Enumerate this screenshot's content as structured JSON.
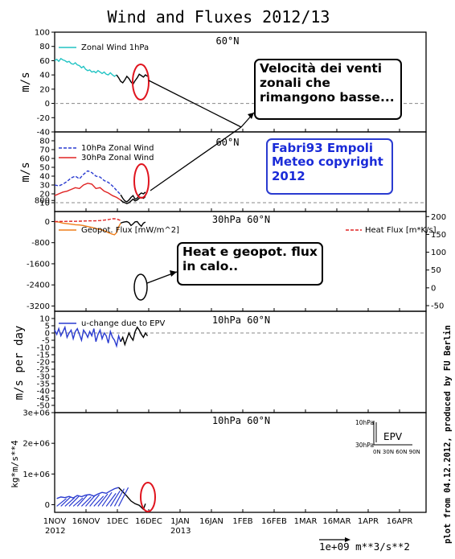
{
  "title": "Wind and Fluxes 2012/13",
  "side_note": "plot from 04.12.2012, produced by FU Berlin",
  "bottom_unit": "1e+09  m**3/s**2",
  "callouts": {
    "zonal": "Velocità dei venti\nzonali che\nrimangono basse...",
    "credit": "Fabri93 Empoli\nMeteo copyright\n2012",
    "flux": "Heat e geopot. flux\nin calo.."
  },
  "x_axis": {
    "labels": [
      "1NOV",
      "16NOV",
      "1DEC",
      "16DEC",
      "1JAN",
      "16JAN",
      "1FEB",
      "16FEB",
      "1MAR",
      "16MAR",
      "1APR",
      "16APR"
    ],
    "years": [
      "2012",
      "2013"
    ]
  },
  "chart_data": [
    {
      "type": "line",
      "title": "60°N",
      "ylabel": "m/s",
      "ylim": [
        -40,
        100
      ],
      "yticks": [
        "100",
        "80",
        "60",
        "40",
        "20",
        "0",
        "-20",
        "-40"
      ],
      "legend": [
        "Zonal Wind 1hPa"
      ],
      "colors": [
        "#22c4c4",
        "#000000"
      ],
      "series": [
        {
          "name": "Zonal Wind 1hPa",
          "x": [
            0,
            1,
            2,
            3,
            4,
            5,
            6,
            7,
            8,
            9,
            10,
            11,
            12,
            13,
            14,
            15,
            16,
            17,
            18,
            19,
            20,
            21,
            22,
            23,
            24,
            25,
            26,
            27,
            28,
            29,
            30
          ],
          "values": [
            60,
            62,
            59,
            63,
            61,
            60,
            58,
            59,
            56,
            55,
            57,
            54,
            53,
            50,
            52,
            48,
            46,
            47,
            44,
            45,
            43,
            46,
            44,
            42,
            44,
            41,
            40,
            43,
            40,
            38,
            40
          ]
        },
        {
          "name": "",
          "x": [
            30,
            31,
            32,
            33,
            34,
            35,
            36,
            37,
            38,
            39,
            40,
            41,
            42,
            43,
            44,
            45
          ],
          "values": [
            40,
            36,
            31,
            29,
            33,
            38,
            35,
            30,
            27,
            32,
            36,
            41,
            39,
            37,
            40,
            38
          ]
        }
      ]
    },
    {
      "type": "line",
      "title": "60°N",
      "ylabel": "m/s",
      "ylim": [
        0,
        90
      ],
      "yticks": [
        "80",
        "70",
        "60",
        "50",
        "40",
        "30",
        "20",
        "10"
      ],
      "legend": [
        "10hPa Zonal Wind",
        "30hPa Zonal Wind"
      ],
      "colors": [
        "#2a3bd0",
        "#e02424",
        "#000000"
      ],
      "series": [
        {
          "name": "10hPa Zonal Wind",
          "x": [
            0,
            2,
            4,
            6,
            8,
            10,
            12,
            14,
            16,
            18,
            20,
            22,
            24,
            26,
            28,
            30,
            32
          ],
          "values": [
            30,
            29,
            31,
            34,
            38,
            40,
            37,
            42,
            46,
            44,
            40,
            39,
            35,
            33,
            29,
            24,
            19
          ]
        },
        {
          "name": "30hPa Zonal Wind",
          "x": [
            0,
            2,
            4,
            6,
            8,
            10,
            12,
            14,
            16,
            18,
            20,
            22,
            24,
            26,
            28,
            30,
            32
          ],
          "values": [
            18,
            20,
            22,
            23,
            25,
            27,
            26,
            30,
            32,
            31,
            26,
            27,
            23,
            21,
            18,
            16,
            13
          ]
        },
        {
          "name": "",
          "x": [
            32,
            33,
            34,
            35,
            36,
            37,
            38,
            39,
            40,
            41,
            42,
            43,
            44
          ],
          "values": [
            19,
            15,
            12,
            11,
            13,
            16,
            18,
            14,
            15,
            19,
            21,
            20,
            22
          ]
        },
        {
          "name": "",
          "x": [
            32,
            33,
            34,
            35,
            36,
            37,
            38,
            39,
            40,
            41,
            42,
            43,
            44
          ],
          "values": [
            13,
            11,
            10,
            9,
            10,
            12,
            14,
            12,
            13,
            15,
            16,
            15,
            17
          ]
        }
      ]
    },
    {
      "type": "line",
      "title": "30hPa 60°N",
      "ylim": [
        -3400,
        380
      ],
      "yticks_left": [
        "-3200",
        "-2400",
        "-1600",
        "-800",
        "0",
        "800"
      ],
      "yticks_right": [
        "200",
        "150",
        "100",
        "50",
        "0",
        "-50"
      ],
      "legend": [
        "Geopot. Flux [mW/m^2]",
        "Heat Flux [m*K/s]"
      ],
      "colors": [
        "#ef7d1a",
        "#e02424",
        "#000000"
      ],
      "series": [
        {
          "name": "Geopot. Flux [mW/m^2]",
          "x": [
            0,
            2,
            4,
            6,
            8,
            10,
            12,
            14,
            16,
            18,
            20,
            22,
            24,
            26,
            28,
            29,
            30,
            31,
            32
          ],
          "values": [
            0,
            -20,
            -60,
            -80,
            -100,
            -120,
            -130,
            -150,
            -190,
            -220,
            -260,
            -300,
            -340,
            -420,
            -480,
            -500,
            -420,
            -200,
            -60
          ]
        },
        {
          "name": "Heat Flux [m*K/s]",
          "x": [
            0,
            2,
            4,
            6,
            8,
            10,
            12,
            14,
            16,
            18,
            20,
            22,
            24,
            26,
            27,
            28,
            29,
            30,
            31,
            32
          ],
          "values": [
            0,
            2,
            5,
            8,
            10,
            9,
            13,
            20,
            27,
            25,
            30,
            40,
            55,
            75,
            90,
            105,
            110,
            95,
            70,
            40
          ]
        },
        {
          "name": "",
          "x": [
            32,
            33,
            34,
            35,
            36,
            37,
            38,
            39,
            40,
            41,
            42,
            43,
            44
          ],
          "values": [
            -60,
            -30,
            -10,
            0,
            -40,
            -150,
            -90,
            -10,
            0,
            -100,
            -180,
            -60,
            -20
          ]
        }
      ]
    },
    {
      "type": "line",
      "title": "10hPa 60°N",
      "ylabel": "m/s per day",
      "ylim": [
        -55,
        15
      ],
      "yticks": [
        "10",
        "5",
        "0",
        "-5",
        "-10",
        "-15",
        "-20",
        "-25",
        "-30",
        "-35",
        "-40",
        "-45",
        "-50"
      ],
      "legend": [
        "u-change due to EPV"
      ],
      "colors": [
        "#2a3bd0",
        "#000000"
      ],
      "series": [
        {
          "name": "u-change due to EPV",
          "x": [
            0,
            1,
            2,
            3,
            4,
            5,
            6,
            7,
            8,
            9,
            10,
            11,
            12,
            13,
            14,
            15,
            16,
            17,
            18,
            19,
            20,
            21,
            22,
            23,
            24,
            25,
            26,
            27,
            28,
            29,
            30,
            31,
            32
          ],
          "values": [
            2,
            -1,
            3,
            -2,
            1,
            4,
            -3,
            0,
            2,
            -4,
            1,
            3,
            -1,
            -5,
            2,
            0,
            -3,
            1,
            -2,
            3,
            -6,
            -1,
            2,
            -4,
            0,
            -2,
            -7,
            1,
            -3,
            -5,
            -9,
            -2,
            -6
          ]
        },
        {
          "name": "",
          "x": [
            32,
            33,
            34,
            35,
            36,
            37,
            38,
            39,
            40,
            41,
            42,
            43,
            44,
            45
          ],
          "values": [
            -6,
            -3,
            -8,
            -4,
            0,
            -3,
            -5,
            1,
            4,
            2,
            -1,
            -3,
            0,
            -2
          ]
        }
      ]
    },
    {
      "type": "line",
      "title": "10hPa 60°N",
      "ylabel": "kg*m/s**4",
      "ylim": [
        -250000,
        3000000
      ],
      "yticks": [
        "3e+06",
        "2e+06",
        "1e+06",
        "0"
      ],
      "legend": [
        "EPV"
      ],
      "inset_labels": [
        "10hPa",
        "30hPa",
        "0N 30N 60N 90N"
      ],
      "colors": [
        "#2a3bd0",
        "#000000"
      ],
      "series": [
        {
          "name": "EPV",
          "x": [
            1,
            3,
            5,
            7,
            9,
            11,
            13,
            15,
            17,
            19,
            21,
            23,
            25,
            27,
            29,
            31
          ],
          "values": [
            200000,
            250000,
            230000,
            270000,
            220000,
            300000,
            260000,
            310000,
            330000,
            280000,
            350000,
            400000,
            370000,
            450000,
            520000,
            560000
          ]
        },
        {
          "name": "",
          "x": [
            31,
            33,
            35,
            37,
            39,
            41,
            43,
            44
          ],
          "values": [
            560000,
            420000,
            280000,
            120000,
            30000,
            -20000,
            -150000,
            30000
          ]
        }
      ]
    }
  ]
}
